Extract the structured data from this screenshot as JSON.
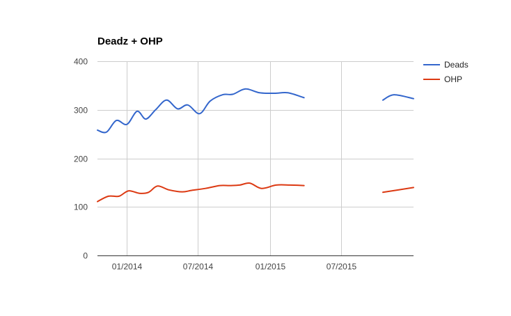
{
  "chart_data": {
    "type": "line",
    "title": "Deadz + OHP",
    "xlabel": "",
    "ylabel": "",
    "ylim": [
      0,
      400
    ],
    "yticks": [
      "0",
      "100",
      "200",
      "300",
      "400"
    ],
    "xlim": [
      "2013-10-18",
      "2016-01-01"
    ],
    "xticks": [
      {
        "date": "2014-01-01",
        "label": "01/2014"
      },
      {
        "date": "2014-07-01",
        "label": "07/2014"
      },
      {
        "date": "2015-01-01",
        "label": "01/2015"
      },
      {
        "date": "2015-07-01",
        "label": "07/2015"
      }
    ],
    "grid": true,
    "legend": "right",
    "series": [
      {
        "name": "Deads",
        "color": "#3366cc",
        "segments": [
          [
            [
              "2013-10-18",
              258
            ],
            [
              "2013-11-10",
              254
            ],
            [
              "2013-12-05",
              278
            ],
            [
              "2014-01-01",
              270
            ],
            [
              "2014-01-27",
              297
            ],
            [
              "2014-02-18",
              281
            ],
            [
              "2014-03-15",
              300
            ],
            [
              "2014-04-12",
              320
            ],
            [
              "2014-05-10",
              302
            ],
            [
              "2014-06-05",
              310
            ],
            [
              "2014-07-05",
              292
            ],
            [
              "2014-08-01",
              318
            ],
            [
              "2014-09-02",
              331
            ],
            [
              "2014-09-28",
              332
            ],
            [
              "2014-10-30",
              343
            ],
            [
              "2014-12-05",
              335
            ],
            [
              "2015-01-12",
              334
            ],
            [
              "2015-02-15",
              335
            ],
            [
              "2015-03-28",
              325
            ]
          ],
          [
            [
              "2015-10-15",
              320
            ],
            [
              "2015-11-12",
              331
            ],
            [
              "2016-01-01",
              323
            ]
          ]
        ]
      },
      {
        "name": "OHP",
        "color": "#dc3912",
        "segments": [
          [
            [
              "2013-10-18",
              111
            ],
            [
              "2013-11-15",
              122
            ],
            [
              "2013-12-12",
              122
            ],
            [
              "2014-01-05",
              133
            ],
            [
              "2014-02-02",
              128
            ],
            [
              "2014-02-25",
              130
            ],
            [
              "2014-03-20",
              143
            ],
            [
              "2014-04-18",
              135
            ],
            [
              "2014-05-22",
              131
            ],
            [
              "2014-06-15",
              134
            ],
            [
              "2014-07-20",
              138
            ],
            [
              "2014-08-25",
              144
            ],
            [
              "2014-09-20",
              144
            ],
            [
              "2014-10-15",
              145
            ],
            [
              "2014-11-10",
              149
            ],
            [
              "2014-12-10",
              138
            ],
            [
              "2015-01-16",
              145
            ],
            [
              "2015-02-20",
              145
            ],
            [
              "2015-03-28",
              144
            ]
          ],
          [
            [
              "2015-10-15",
              130
            ],
            [
              "2016-01-01",
              140
            ]
          ]
        ]
      }
    ]
  }
}
